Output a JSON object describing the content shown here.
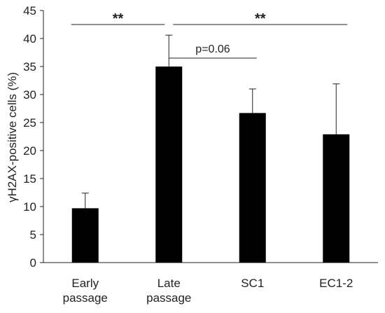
{
  "chart_data": {
    "type": "bar",
    "title": "",
    "xlabel": "",
    "ylabel": "γH2AX-positive cells (%)",
    "ylim": [
      0,
      45
    ],
    "yticks": [
      0,
      5,
      10,
      15,
      20,
      25,
      30,
      35,
      40,
      45
    ],
    "grid": false,
    "legend": "none",
    "bar_color": "#000000",
    "categories": [
      [
        "Early",
        "passage"
      ],
      [
        "Late",
        "passage"
      ],
      [
        "SC1"
      ],
      [
        "EC1-2"
      ]
    ],
    "values": [
      9.7,
      35.0,
      26.7,
      22.9
    ],
    "error_upper": [
      2.7,
      5.6,
      4.3,
      9.0
    ],
    "annotations": [
      {
        "text": "**",
        "from": 0,
        "to": 1,
        "y": 42.5
      },
      {
        "text": "**",
        "from": 1,
        "to": 3,
        "y": 42.5
      },
      {
        "text": "p=0.06",
        "from": 1,
        "to": 2,
        "y": 36.5
      }
    ]
  }
}
